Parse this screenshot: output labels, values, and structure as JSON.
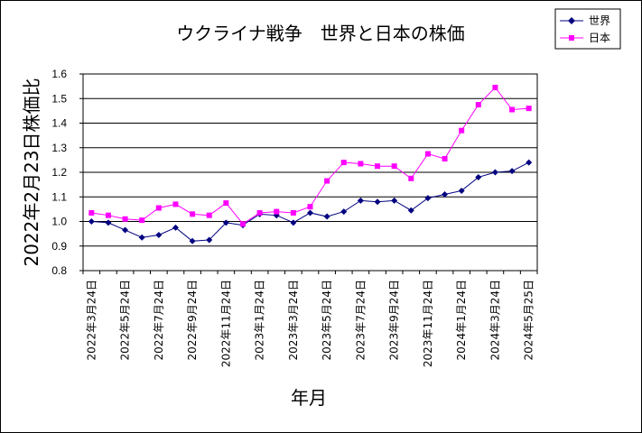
{
  "chart_data": {
    "type": "line",
    "title": "ウクライナ戦争　世界と日本の株価",
    "ylabel": "2022年2月23日株価比",
    "xlabel": "年月",
    "ylim": [
      0.8,
      1.6
    ],
    "yticks": [
      "0.8",
      "0.9",
      "1.0",
      "1.1",
      "1.2",
      "1.3",
      "1.4",
      "1.5",
      "1.6"
    ],
    "x_tick_labels": [
      "2022年3月24日",
      "2022年5月24日",
      "2022年7月24日",
      "2022年9月24日",
      "2022年11月24日",
      "2023年1月24日",
      "2023年3月24日",
      "2023年5月24日",
      "2023年7月24日",
      "2023年9月24日",
      "2023年11月24日",
      "2024年1月24日",
      "2024年3月24日",
      "2024年5月25日"
    ],
    "x_tick_every": 2,
    "grid": "horizontal",
    "legend": "top-right",
    "series": [
      {
        "name": "世界",
        "color": "#000080",
        "marker": "diamond",
        "values": [
          1.0,
          0.995,
          0.965,
          0.935,
          0.945,
          0.975,
          0.92,
          0.925,
          0.995,
          0.985,
          1.03,
          1.025,
          0.995,
          1.035,
          1.02,
          1.04,
          1.085,
          1.08,
          1.085,
          1.045,
          1.095,
          1.11,
          1.125,
          1.18,
          1.2,
          1.205,
          1.24
        ]
      },
      {
        "name": "日本",
        "color": "#ff00ff",
        "marker": "square",
        "values": [
          1.035,
          1.025,
          1.01,
          1.005,
          1.055,
          1.07,
          1.03,
          1.025,
          1.075,
          0.99,
          1.035,
          1.04,
          1.035,
          1.06,
          1.165,
          1.24,
          1.235,
          1.225,
          1.225,
          1.175,
          1.275,
          1.255,
          1.37,
          1.475,
          1.545,
          1.455,
          1.46
        ]
      }
    ]
  }
}
